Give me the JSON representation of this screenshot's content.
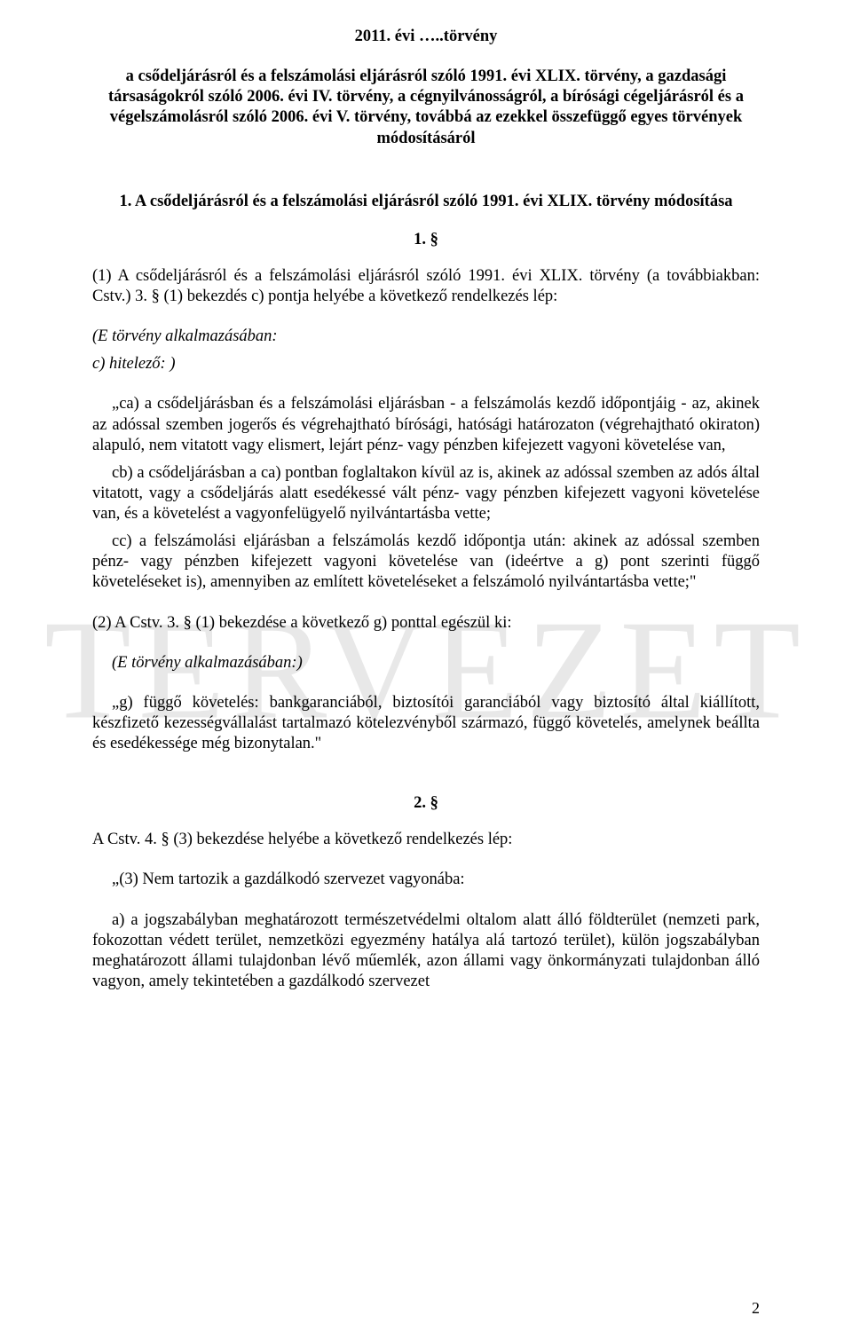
{
  "watermark_text": "TERVEZET",
  "title": "2011. évi …..törvény",
  "intro_bold": "a csődeljárásról és a felszámolási eljárásról szóló 1991. évi XLIX. törvény, a gazdasági társaságokról szóló 2006. évi IV. törvény, a cégnyilvánosságról, a bírósági cégeljárásról és a végelszámolásról szóló 2006. évi V. törvény, továbbá az ezekkel összefüggő egyes törvények módosításáról",
  "subhead_1": "1. A csődeljárásról és a felszámolási eljárásról szóló 1991. évi XLIX. törvény módosítása",
  "section1_num": "1. §",
  "p1": "(1) A csődeljárásról és a felszámolási eljárásról szóló 1991. évi XLIX. törvény (a továbbiakban: Cstv.) 3. § (1) bekezdés c) pontja helyébe a következő rendelkezés lép:",
  "p2": "(E törvény alkalmazásában:",
  "p3": "c) hitelező: )",
  "p4": "„ca) a csődeljárásban és a felszámolási eljárásban - a felszámolás kezdő időpontjáig - az, akinek az adóssal szemben jogerős és végrehajtható bírósági, hatósági határozaton (végrehajtható okiraton) alapuló, nem vitatott vagy elismert, lejárt pénz- vagy pénzben kifejezett vagyoni követelése van,",
  "p5": "cb) a csődeljárásban a ca) pontban foglaltakon kívül az is, akinek az adóssal szemben az adós által vitatott, vagy a csődeljárás alatt esedékessé vált pénz- vagy pénzben kifejezett vagyoni követelése van, és a követelést a vagyonfelügyelő nyilvántartásba vette;",
  "p6": "cc) a felszámolási eljárásban a felszámolás kezdő időpontja után: akinek az adóssal szemben pénz- vagy pénzben kifejezett vagyoni követelése van (ideértve a g) pont szerinti függő követeléseket is), amennyiben az említett követeléseket a felszámoló nyilvántartásba vette;\"",
  "p7": "(2) A Cstv. 3. § (1) bekezdése a következő g) ponttal egészül ki:",
  "p8": "(E törvény alkalmazásában:)",
  "p9": "„g) függő követelés: bankgaranciából, biztosítói garanciából vagy biztosító által kiállított, készfizető kezességvállalást tartalmazó kötelezvényből származó, függő követelés, amelynek beállta és esedékessége még bizonytalan.\"",
  "section2_num": "2. §",
  "p10": "A Cstv. 4. § (3) bekezdése helyébe a következő rendelkezés lép:",
  "p11": "„(3) Nem tartozik a gazdálkodó szervezet vagyonába:",
  "p12": "a) a jogszabályban meghatározott természetvédelmi oltalom alatt álló földterület (nemzeti park, fokozottan védett terület, nemzetközi egyezmény hatálya alá tartozó terület), külön jogszabályban meghatározott állami tulajdonban lévő műemlék, azon állami vagy önkormányzati tulajdonban álló vagyon, amely tekintetében a gazdálkodó szervezet",
  "page_number": "2"
}
